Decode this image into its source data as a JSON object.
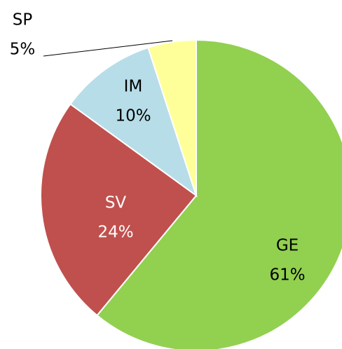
{
  "chart_data": {
    "type": "pie",
    "categories": [
      "GE",
      "SV",
      "IM",
      "SP"
    ],
    "values": [
      61,
      24,
      10,
      5
    ],
    "value_labels": [
      "61%",
      "24%",
      "10%",
      "5%"
    ],
    "colors": [
      "#92d050",
      "#c0504d",
      "#b7dde8",
      "#ffff99"
    ]
  }
}
